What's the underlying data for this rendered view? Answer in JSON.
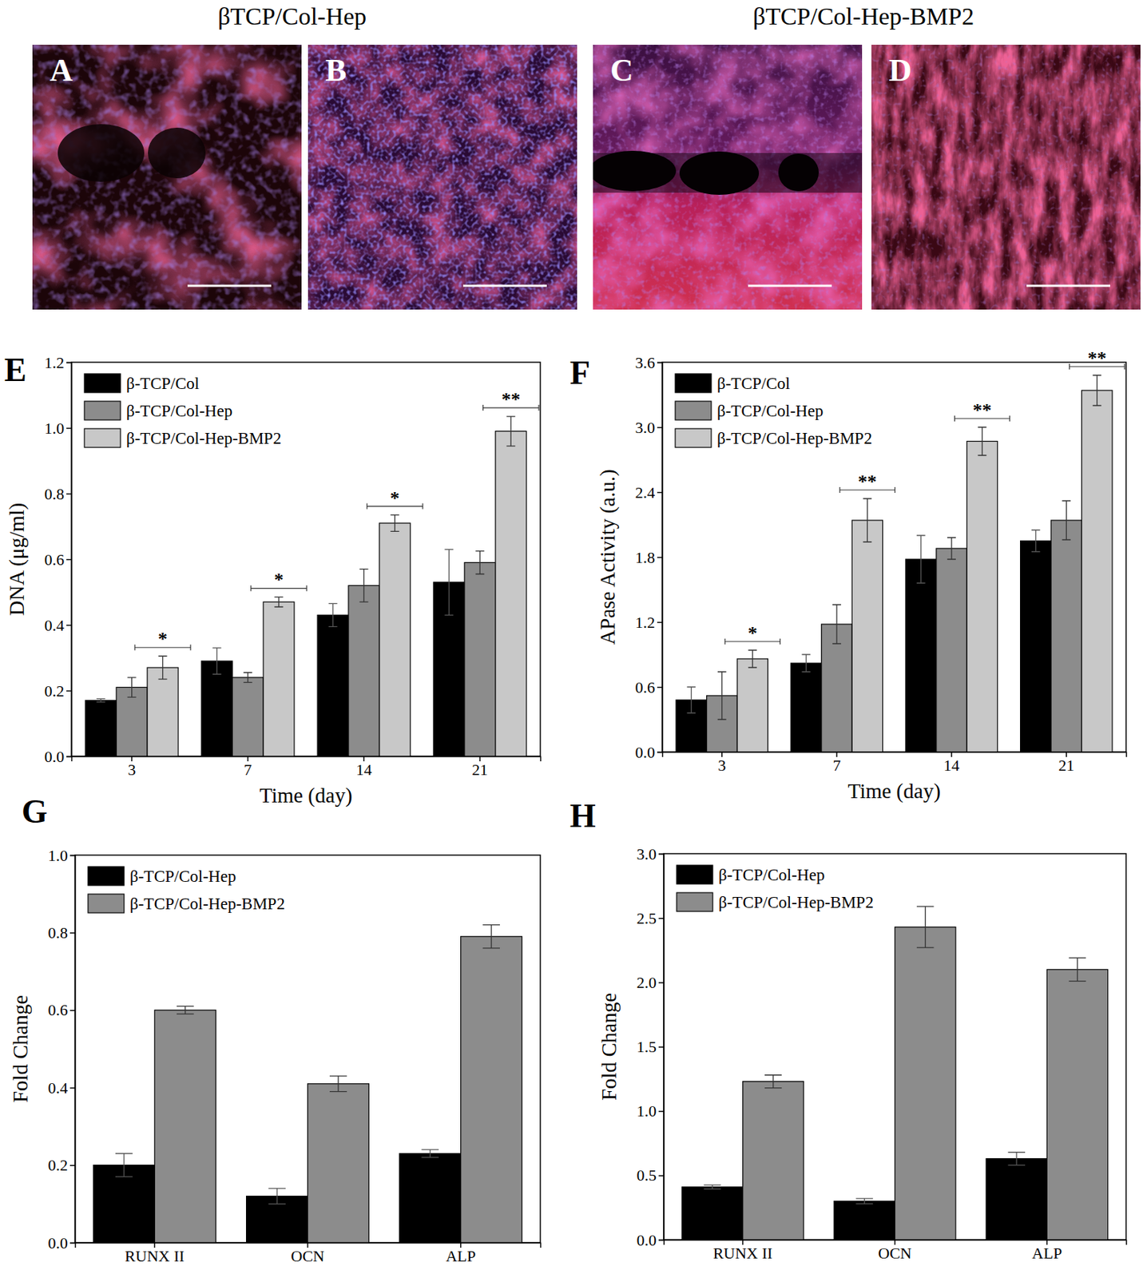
{
  "image_panels": {
    "group_titles": [
      "βTCP/Col-Hep",
      "βTCP/Col-Hep-BMP2"
    ],
    "labels": [
      "A",
      "B",
      "C",
      "D"
    ]
  },
  "chart_data": [
    {
      "type": "bar",
      "title": "E",
      "x_label": "Time (day)",
      "y_label": "DNA (μg/ml)",
      "categories": [
        "3",
        "7",
        "14",
        "21"
      ],
      "series": [
        {
          "name": "β-TCP/Col",
          "color": "#000000",
          "values": [
            0.17,
            0.29,
            0.43,
            0.53
          ],
          "errors": [
            0.005,
            0.04,
            0.035,
            0.1
          ]
        },
        {
          "name": "β-TCP/Col-Hep",
          "color": "#8c8c8c",
          "values": [
            0.21,
            0.24,
            0.52,
            0.59
          ],
          "errors": [
            0.03,
            0.015,
            0.05,
            0.035
          ]
        },
        {
          "name": "β-TCP/Col-Hep-BMP2",
          "color": "#c8c8c8",
          "values": [
            0.27,
            0.47,
            0.71,
            0.99
          ],
          "errors": [
            0.035,
            0.015,
            0.025,
            0.045
          ]
        }
      ],
      "ylim": [
        0,
        1.2
      ],
      "yticks": [
        {
          "value": 0,
          "label": "0.0"
        },
        0.2,
        0.4,
        0.6,
        0.8,
        {
          "value": 1,
          "label": "1.0"
        },
        1.2
      ],
      "legend": "upper left",
      "annotations": [
        "*",
        "*",
        "*",
        "**"
      ]
    },
    {
      "type": "bar",
      "title": "F",
      "x_label": "Time (day)",
      "y_label": "APase Activity (a.u.)",
      "categories": [
        "3",
        "7",
        "14",
        "21"
      ],
      "series": [
        {
          "name": "β-TCP/Col",
          "color": "#000000",
          "values": [
            0.48,
            0.82,
            1.78,
            1.95
          ],
          "errors": [
            0.12,
            0.08,
            0.22,
            0.1
          ]
        },
        {
          "name": "β-TCP/Col-Hep",
          "color": "#8c8c8c",
          "values": [
            0.52,
            1.18,
            1.88,
            2.14
          ],
          "errors": [
            0.22,
            0.18,
            0.1,
            0.18
          ]
        },
        {
          "name": "β-TCP/Col-Hep-BMP2",
          "color": "#c8c8c8",
          "values": [
            0.86,
            2.14,
            2.87,
            3.34
          ],
          "errors": [
            0.08,
            0.2,
            0.13,
            0.14
          ]
        }
      ],
      "ylim": [
        0,
        3.6
      ],
      "yticks": [
        {
          "value": 0,
          "label": "0.0"
        },
        0.6,
        1.2,
        1.8,
        2.4,
        {
          "value": 3,
          "label": "3.0"
        },
        3.6
      ],
      "legend": "upper left",
      "annotations": [
        "*",
        "**",
        "**",
        "**"
      ]
    },
    {
      "type": "bar",
      "title": "G",
      "y_label": "Fold Change",
      "categories": [
        "RUNX II",
        "OCN",
        "ALP"
      ],
      "series": [
        {
          "name": "β-TCP/Col-Hep",
          "color": "#000000",
          "values": [
            0.2,
            0.12,
            0.23
          ],
          "errors": [
            0.03,
            0.02,
            0.01
          ]
        },
        {
          "name": "β-TCP/Col-Hep-BMP2",
          "color": "#8c8c8c",
          "values": [
            0.6,
            0.41,
            0.79
          ],
          "errors": [
            0.01,
            0.02,
            0.03
          ]
        }
      ],
      "ylim": [
        0,
        1
      ],
      "yticks": [
        {
          "value": 0,
          "label": "0.0"
        },
        0.2,
        0.4,
        0.6,
        0.8,
        {
          "value": 1,
          "label": "1.0"
        }
      ],
      "legend": "upper left"
    },
    {
      "type": "bar",
      "title": "H",
      "y_label": "Fold Change",
      "categories": [
        "RUNX II",
        "OCN",
        "ALP"
      ],
      "series": [
        {
          "name": "β-TCP/Col-Hep",
          "color": "#000000",
          "values": [
            0.41,
            0.3,
            0.63
          ],
          "errors": [
            0.015,
            0.02,
            0.05
          ]
        },
        {
          "name": "β-TCP/Col-Hep-BMP2",
          "color": "#8c8c8c",
          "values": [
            1.23,
            2.43,
            2.1
          ],
          "errors": [
            0.05,
            0.16,
            0.09
          ]
        }
      ],
      "ylim": [
        0,
        3
      ],
      "yticks": [
        {
          "value": 0,
          "label": "0.0"
        },
        0.5,
        {
          "value": 1,
          "label": "1.0"
        },
        1.5,
        {
          "value": 2,
          "label": "2.0"
        },
        2.5,
        {
          "value": 3,
          "label": "3.0"
        }
      ],
      "legend": "upper left"
    }
  ]
}
